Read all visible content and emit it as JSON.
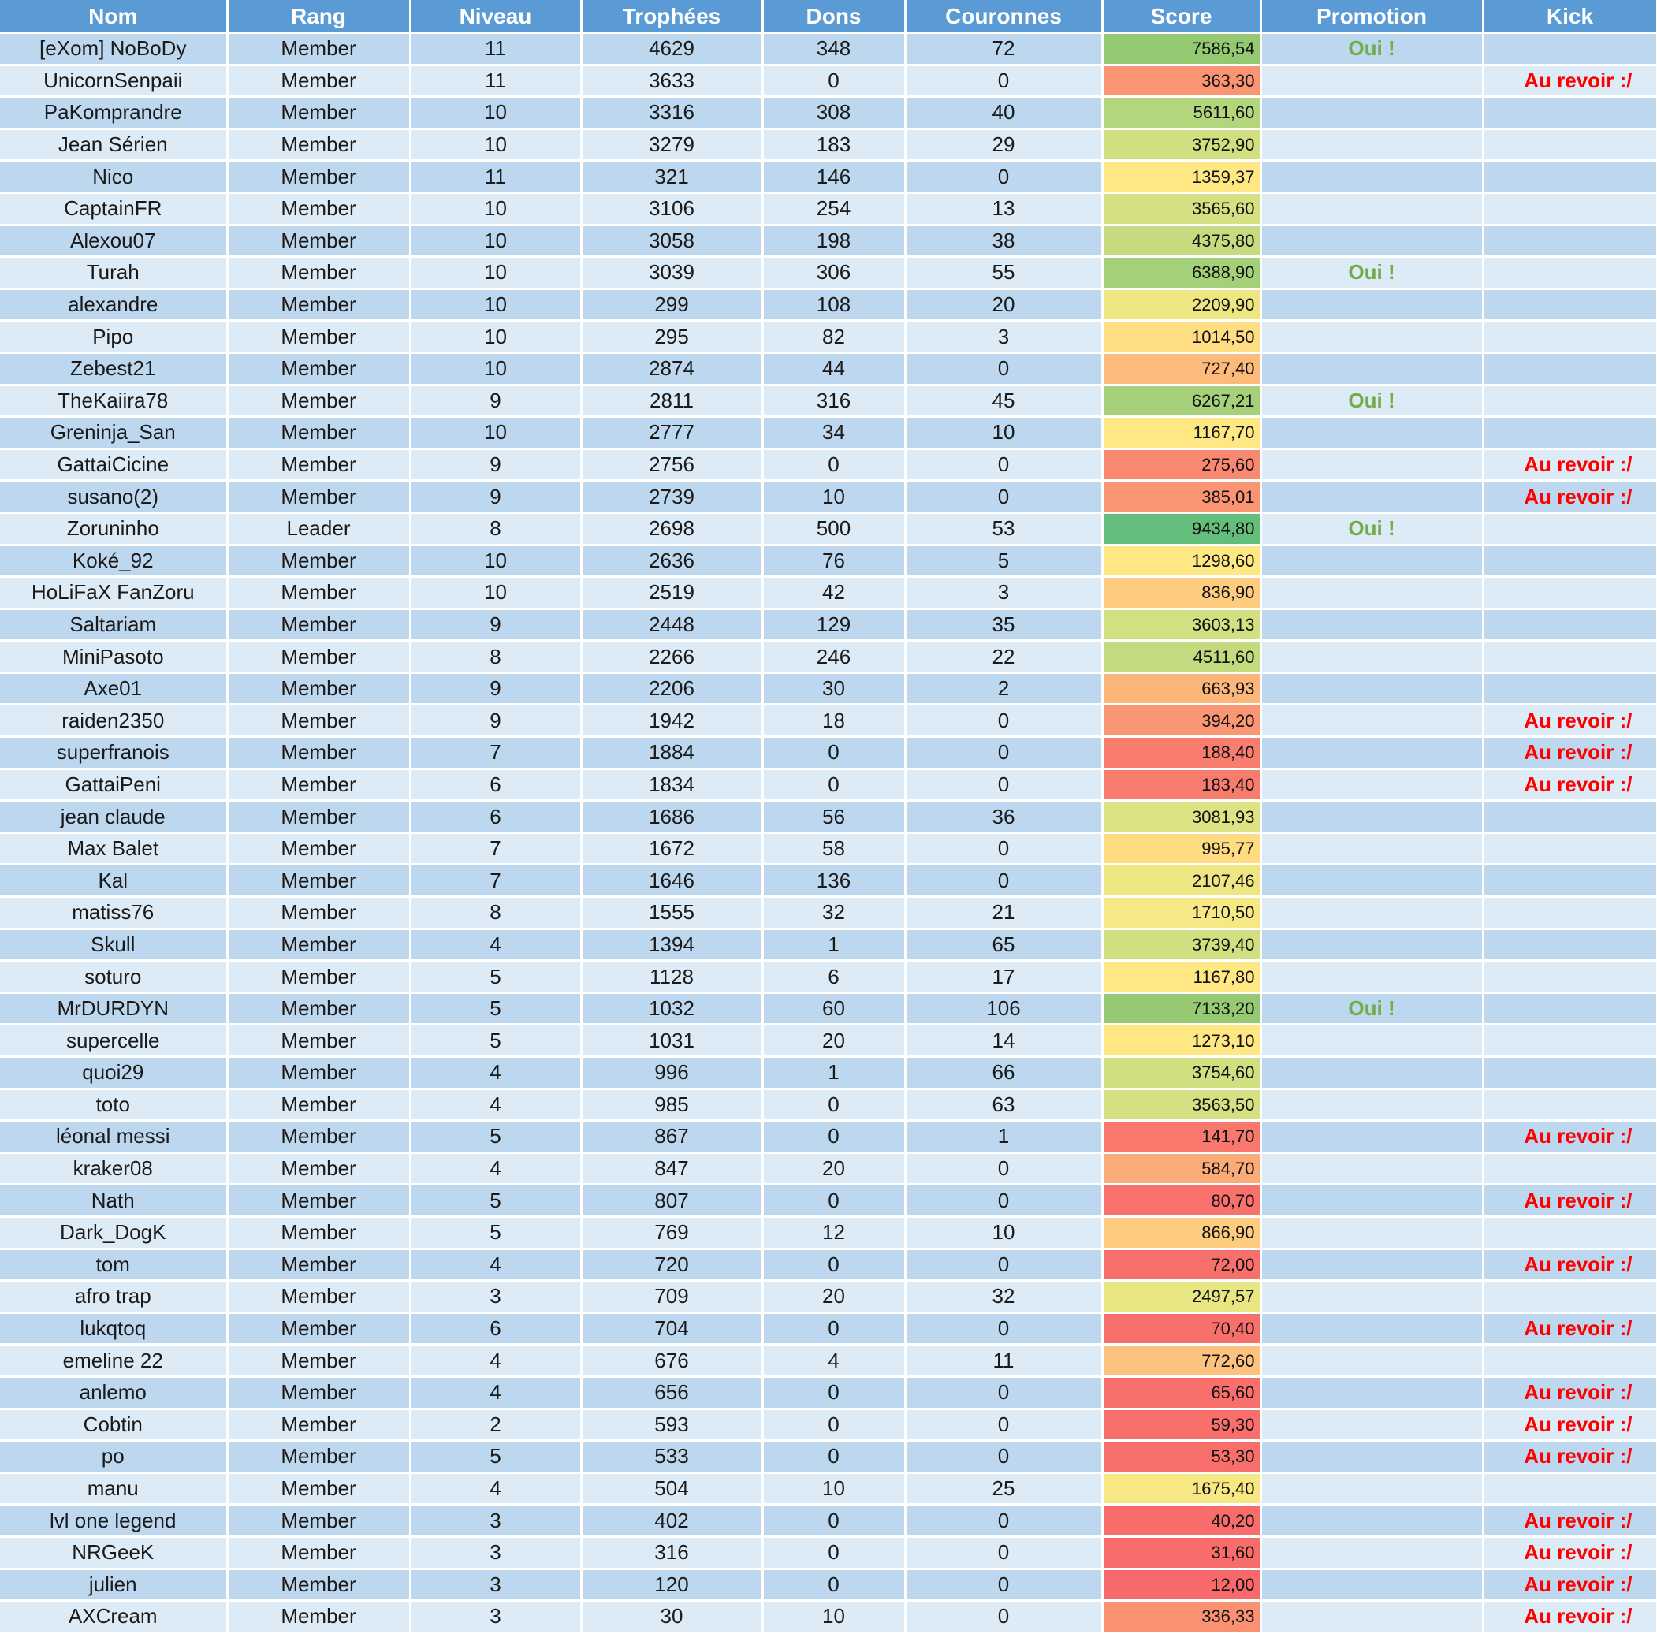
{
  "columns": [
    "Nom",
    "Rang",
    "Niveau",
    "Trophées",
    "Dons",
    "Couronnes",
    "Score",
    "Promotion",
    "Kick"
  ],
  "promo_color": "#70ad47",
  "kick_color": "#ff0000",
  "rows": [
    {
      "nom": "[eXom] NoBoDy",
      "rang": "Member",
      "niveau": "11",
      "trophees": "4629",
      "dons": "348",
      "couronnes": "72",
      "score": "7586,54",
      "score_color": "#93c971",
      "promotion": "Oui !",
      "kick": ""
    },
    {
      "nom": "UnicornSenpaii",
      "rang": "Member",
      "niveau": "11",
      "trophees": "3633",
      "dons": "0",
      "couronnes": "0",
      "score": "363,30",
      "score_color": "#fa9473",
      "promotion": "",
      "kick": "Au revoir :/"
    },
    {
      "nom": "PaKomprandre",
      "rang": "Member",
      "niveau": "10",
      "trophees": "3316",
      "dons": "308",
      "couronnes": "40",
      "score": "5611,60",
      "score_color": "#b3d57c",
      "promotion": "",
      "kick": ""
    },
    {
      "nom": "Jean Sérien",
      "rang": "Member",
      "niveau": "10",
      "trophees": "3279",
      "dons": "183",
      "couronnes": "29",
      "score": "3752,90",
      "score_color": "#d2df80",
      "promotion": "",
      "kick": ""
    },
    {
      "nom": "Nico",
      "rang": "Member",
      "niveau": "11",
      "trophees": "321",
      "dons": "146",
      "couronnes": "0",
      "score": "1359,37",
      "score_color": "#ffe884",
      "promotion": "",
      "kick": ""
    },
    {
      "nom": "CaptainFR",
      "rang": "Member",
      "niveau": "10",
      "trophees": "3106",
      "dons": "254",
      "couronnes": "13",
      "score": "3565,60",
      "score_color": "#d4e081",
      "promotion": "",
      "kick": ""
    },
    {
      "nom": "Alexou07",
      "rang": "Member",
      "niveau": "10",
      "trophees": "3058",
      "dons": "198",
      "couronnes": "38",
      "score": "4375,80",
      "score_color": "#c6db7f",
      "promotion": "",
      "kick": ""
    },
    {
      "nom": "Turah",
      "rang": "Member",
      "niveau": "10",
      "trophees": "3039",
      "dons": "306",
      "couronnes": "55",
      "score": "6388,90",
      "score_color": "#a4d07a",
      "promotion": "Oui !",
      "kick": ""
    },
    {
      "nom": "alexandre",
      "rang": "Member",
      "niveau": "10",
      "trophees": "299",
      "dons": "108",
      "couronnes": "20",
      "score": "2209,90",
      "score_color": "#ede683",
      "promotion": "",
      "kick": ""
    },
    {
      "nom": "Pipo",
      "rang": "Member",
      "niveau": "10",
      "trophees": "295",
      "dons": "82",
      "couronnes": "3",
      "score": "1014,50",
      "score_color": "#ffdd82",
      "promotion": "",
      "kick": ""
    },
    {
      "nom": "Zebest21",
      "rang": "Member",
      "niveau": "10",
      "trophees": "2874",
      "dons": "44",
      "couronnes": "0",
      "score": "727,40",
      "score_color": "#fcbb7b",
      "promotion": "",
      "kick": ""
    },
    {
      "nom": "TheKaiira78",
      "rang": "Member",
      "niveau": "9",
      "trophees": "2811",
      "dons": "316",
      "couronnes": "45",
      "score": "6267,21",
      "score_color": "#a6d17a",
      "promotion": "Oui !",
      "kick": ""
    },
    {
      "nom": "Greninja_San",
      "rang": "Member",
      "niveau": "10",
      "trophees": "2777",
      "dons": "34",
      "couronnes": "10",
      "score": "1167,70",
      "score_color": "#ffe884",
      "promotion": "",
      "kick": ""
    },
    {
      "nom": "GattaiCicine",
      "rang": "Member",
      "niveau": "9",
      "trophees": "2756",
      "dons": "0",
      "couronnes": "0",
      "score": "275,60",
      "score_color": "#f98870",
      "promotion": "",
      "kick": "Au revoir :/"
    },
    {
      "nom": "susano(2)",
      "rang": "Member",
      "niveau": "9",
      "trophees": "2739",
      "dons": "10",
      "couronnes": "0",
      "score": "385,01",
      "score_color": "#fa9473",
      "promotion": "",
      "kick": "Au revoir :/"
    },
    {
      "nom": "Zoruninho",
      "rang": "Leader",
      "niveau": "8",
      "trophees": "2698",
      "dons": "500",
      "couronnes": "53",
      "score": "9434,80",
      "score_color": "#63be7b",
      "promotion": "Oui !",
      "kick": ""
    },
    {
      "nom": "Koké_92",
      "rang": "Member",
      "niveau": "10",
      "trophees": "2636",
      "dons": "76",
      "couronnes": "5",
      "score": "1298,60",
      "score_color": "#ffe884",
      "promotion": "",
      "kick": ""
    },
    {
      "nom": "HoLiFaX FanZoru",
      "rang": "Member",
      "niveau": "10",
      "trophees": "2519",
      "dons": "42",
      "couronnes": "3",
      "score": "836,90",
      "score_color": "#fecc7f",
      "promotion": "",
      "kick": ""
    },
    {
      "nom": "Saltariam",
      "rang": "Member",
      "niveau": "9",
      "trophees": "2448",
      "dons": "129",
      "couronnes": "35",
      "score": "3603,13",
      "score_color": "#d3e081",
      "promotion": "",
      "kick": ""
    },
    {
      "nom": "MiniPasoto",
      "rang": "Member",
      "niveau": "8",
      "trophees": "2266",
      "dons": "246",
      "couronnes": "22",
      "score": "4511,60",
      "score_color": "#c4da7f",
      "promotion": "",
      "kick": ""
    },
    {
      "nom": "Axe01",
      "rang": "Member",
      "niveau": "9",
      "trophees": "2206",
      "dons": "30",
      "couronnes": "2",
      "score": "663,93",
      "score_color": "#fcb67a",
      "promotion": "",
      "kick": ""
    },
    {
      "nom": "raiden2350",
      "rang": "Member",
      "niveau": "9",
      "trophees": "1942",
      "dons": "18",
      "couronnes": "0",
      "score": "394,20",
      "score_color": "#fa9673",
      "promotion": "",
      "kick": "Au revoir :/"
    },
    {
      "nom": "superfranois",
      "rang": "Member",
      "niveau": "7",
      "trophees": "1884",
      "dons": "0",
      "couronnes": "0",
      "score": "188,40",
      "score_color": "#f87d6e",
      "promotion": "",
      "kick": "Au revoir :/"
    },
    {
      "nom": "GattaiPeni",
      "rang": "Member",
      "niveau": "6",
      "trophees": "1834",
      "dons": "0",
      "couronnes": "0",
      "score": "183,40",
      "score_color": "#f87c6e",
      "promotion": "",
      "kick": "Au revoir :/"
    },
    {
      "nom": "jean claude",
      "rang": "Member",
      "niveau": "6",
      "trophees": "1686",
      "dons": "56",
      "couronnes": "36",
      "score": "3081,93",
      "score_color": "#dde282",
      "promotion": "",
      "kick": ""
    },
    {
      "nom": "Max Balet",
      "rang": "Member",
      "niveau": "7",
      "trophees": "1672",
      "dons": "58",
      "couronnes": "0",
      "score": "995,77",
      "score_color": "#ffdb81",
      "promotion": "",
      "kick": ""
    },
    {
      "nom": "Kal",
      "rang": "Member",
      "niveau": "7",
      "trophees": "1646",
      "dons": "136",
      "couronnes": "0",
      "score": "2107,46",
      "score_color": "#eee683",
      "promotion": "",
      "kick": ""
    },
    {
      "nom": "matiss76",
      "rang": "Member",
      "niveau": "8",
      "trophees": "1555",
      "dons": "32",
      "couronnes": "21",
      "score": "1710,50",
      "score_color": "#f6e884",
      "promotion": "",
      "kick": ""
    },
    {
      "nom": "Skull",
      "rang": "Member",
      "niveau": "4",
      "trophees": "1394",
      "dons": "1",
      "couronnes": "65",
      "score": "3739,40",
      "score_color": "#d2df80",
      "promotion": "",
      "kick": ""
    },
    {
      "nom": "soturo",
      "rang": "Member",
      "niveau": "5",
      "trophees": "1128",
      "dons": "6",
      "couronnes": "17",
      "score": "1167,80",
      "score_color": "#ffe884",
      "promotion": "",
      "kick": ""
    },
    {
      "nom": "MrDURDYN",
      "rang": "Member",
      "niveau": "5",
      "trophees": "1032",
      "dons": "60",
      "couronnes": "106",
      "score": "7133,20",
      "score_color": "#96ca72",
      "promotion": "Oui !",
      "kick": ""
    },
    {
      "nom": "supercelle",
      "rang": "Member",
      "niveau": "5",
      "trophees": "1031",
      "dons": "20",
      "couronnes": "14",
      "score": "1273,10",
      "score_color": "#ffe884",
      "promotion": "",
      "kick": ""
    },
    {
      "nom": "quoi29",
      "rang": "Member",
      "niveau": "4",
      "trophees": "996",
      "dons": "1",
      "couronnes": "66",
      "score": "3754,60",
      "score_color": "#d2df80",
      "promotion": "",
      "kick": ""
    },
    {
      "nom": "toto",
      "rang": "Member",
      "niveau": "4",
      "trophees": "985",
      "dons": "0",
      "couronnes": "63",
      "score": "3563,50",
      "score_color": "#d4e081",
      "promotion": "",
      "kick": ""
    },
    {
      "nom": "léonal messi",
      "rang": "Member",
      "niveau": "5",
      "trophees": "867",
      "dons": "0",
      "couronnes": "1",
      "score": "141,70",
      "score_color": "#f8786d",
      "promotion": "",
      "kick": "Au revoir :/"
    },
    {
      "nom": "kraker08",
      "rang": "Member",
      "niveau": "4",
      "trophees": "847",
      "dons": "20",
      "couronnes": "0",
      "score": "584,70",
      "score_color": "#fbab78",
      "promotion": "",
      "kick": ""
    },
    {
      "nom": "Nath",
      "rang": "Member",
      "niveau": "5",
      "trophees": "807",
      "dons": "0",
      "couronnes": "0",
      "score": "80,70",
      "score_color": "#f8716c",
      "promotion": "",
      "kick": "Au revoir :/"
    },
    {
      "nom": "Dark_DogK",
      "rang": "Member",
      "niveau": "5",
      "trophees": "769",
      "dons": "12",
      "couronnes": "10",
      "score": "866,90",
      "score_color": "#fecc7f",
      "promotion": "",
      "kick": ""
    },
    {
      "nom": "tom",
      "rang": "Member",
      "niveau": "4",
      "trophees": "720",
      "dons": "0",
      "couronnes": "0",
      "score": "72,00",
      "score_color": "#f8706b",
      "promotion": "",
      "kick": "Au revoir :/"
    },
    {
      "nom": "afro trap",
      "rang": "Member",
      "niveau": "3",
      "trophees": "709",
      "dons": "20",
      "couronnes": "32",
      "score": "2497,57",
      "score_color": "#e8e583",
      "promotion": "",
      "kick": ""
    },
    {
      "nom": "lukqtoq",
      "rang": "Member",
      "niveau": "6",
      "trophees": "704",
      "dons": "0",
      "couronnes": "0",
      "score": "70,40",
      "score_color": "#f8706b",
      "promotion": "",
      "kick": "Au revoir :/"
    },
    {
      "nom": "emeline 22",
      "rang": "Member",
      "niveau": "4",
      "trophees": "676",
      "dons": "4",
      "couronnes": "11",
      "score": "772,60",
      "score_color": "#fdc27d",
      "promotion": "",
      "kick": ""
    },
    {
      "nom": "anlemo",
      "rang": "Member",
      "niveau": "4",
      "trophees": "656",
      "dons": "0",
      "couronnes": "0",
      "score": "65,60",
      "score_color": "#f86f6b",
      "promotion": "",
      "kick": "Au revoir :/"
    },
    {
      "nom": "Cobtin",
      "rang": "Member",
      "niveau": "2",
      "trophees": "593",
      "dons": "0",
      "couronnes": "0",
      "score": "59,30",
      "score_color": "#f86f6b",
      "promotion": "",
      "kick": "Au revoir :/"
    },
    {
      "nom": "po",
      "rang": "Member",
      "niveau": "5",
      "trophees": "533",
      "dons": "0",
      "couronnes": "0",
      "score": "53,30",
      "score_color": "#f86e6b",
      "promotion": "",
      "kick": "Au revoir :/"
    },
    {
      "nom": "manu",
      "rang": "Member",
      "niveau": "4",
      "trophees": "504",
      "dons": "10",
      "couronnes": "25",
      "score": "1675,40",
      "score_color": "#f7e884",
      "promotion": "",
      "kick": ""
    },
    {
      "nom": "lvl one legend",
      "rang": "Member",
      "niveau": "3",
      "trophees": "402",
      "dons": "0",
      "couronnes": "0",
      "score": "40,20",
      "score_color": "#f86d6b",
      "promotion": "",
      "kick": "Au revoir :/"
    },
    {
      "nom": "NRGeeK",
      "rang": "Member",
      "niveau": "3",
      "trophees": "316",
      "dons": "0",
      "couronnes": "0",
      "score": "31,60",
      "score_color": "#f86c6b",
      "promotion": "",
      "kick": "Au revoir :/"
    },
    {
      "nom": "julien",
      "rang": "Member",
      "niveau": "3",
      "trophees": "120",
      "dons": "0",
      "couronnes": "0",
      "score": "12,00",
      "score_color": "#f8696b",
      "promotion": "",
      "kick": "Au revoir :/"
    },
    {
      "nom": "AXCream",
      "rang": "Member",
      "niveau": "3",
      "trophees": "30",
      "dons": "10",
      "couronnes": "0",
      "score": "336,33",
      "score_color": "#f99172",
      "promotion": "",
      "kick": "Au revoir :/"
    }
  ]
}
